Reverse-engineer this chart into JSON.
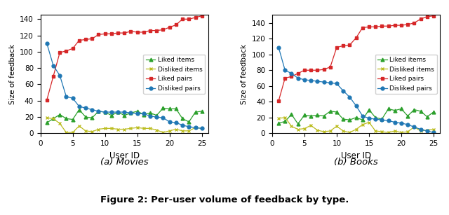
{
  "movies": {
    "x": [
      1,
      2,
      3,
      4,
      5,
      6,
      7,
      8,
      9,
      10,
      11,
      12,
      13,
      14,
      15,
      16,
      17,
      18,
      19,
      20,
      21,
      22,
      23,
      24,
      25
    ],
    "liked_items": [
      13,
      18,
      23,
      18,
      17,
      29,
      20,
      19,
      27,
      26,
      22,
      26,
      22,
      25,
      27,
      23,
      25,
      22,
      31,
      30,
      30,
      18,
      14,
      26,
      27
    ],
    "disliked_items": [
      19,
      18,
      12,
      1,
      1,
      9,
      3,
      2,
      5,
      6,
      6,
      5,
      5,
      6,
      7,
      6,
      6,
      4,
      1,
      3,
      5,
      3,
      3,
      7,
      6
    ],
    "liked_pairs": [
      41,
      70,
      99,
      101,
      104,
      114,
      115,
      116,
      121,
      122,
      122,
      123,
      123,
      125,
      124,
      124,
      126,
      126,
      127,
      130,
      133,
      140,
      140,
      142,
      144
    ],
    "disliked_pairs": [
      110,
      83,
      71,
      45,
      43,
      33,
      31,
      29,
      27,
      26,
      26,
      26,
      26,
      25,
      24,
      24,
      21,
      20,
      19,
      14,
      13,
      10,
      8,
      7,
      6
    ]
  },
  "books": {
    "x": [
      1,
      2,
      3,
      4,
      5,
      6,
      7,
      8,
      9,
      10,
      11,
      12,
      13,
      14,
      15,
      16,
      17,
      18,
      19,
      20,
      21,
      22,
      23,
      24,
      25
    ],
    "liked_items": [
      13,
      15,
      24,
      12,
      23,
      22,
      23,
      22,
      28,
      27,
      18,
      17,
      20,
      17,
      30,
      20,
      18,
      31,
      29,
      31,
      22,
      30,
      28,
      21,
      27
    ],
    "disliked_items": [
      19,
      20,
      9,
      5,
      6,
      10,
      4,
      2,
      3,
      9,
      3,
      1,
      5,
      11,
      14,
      3,
      2,
      1,
      3,
      1,
      2,
      8,
      3,
      4,
      5
    ],
    "liked_pairs": [
      41,
      70,
      72,
      76,
      80,
      80,
      80,
      81,
      84,
      109,
      111,
      112,
      121,
      134,
      135,
      135,
      136,
      136,
      137,
      137,
      138,
      140,
      145,
      148,
      149
    ],
    "disliked_pairs": [
      109,
      80,
      76,
      70,
      68,
      67,
      66,
      65,
      64,
      63,
      54,
      46,
      35,
      22,
      19,
      18,
      17,
      16,
      14,
      13,
      11,
      8,
      5,
      3,
      1
    ]
  },
  "colors": {
    "liked_items": "#2ca02c",
    "disliked_items": "#bcbd22",
    "liked_pairs": "#d62728",
    "disliked_pairs": "#1f77b4"
  },
  "ylabel": "Size of feedback",
  "xlabel": "User ID",
  "title_movies": "(a) Movies",
  "title_books": "(b) Books",
  "figure_caption": "Figure 2: Per-user volume of feedback by type.",
  "ylim_movies": [
    0,
    145
  ],
  "ylim_books": [
    0,
    150
  ],
  "yticks_movies": [
    0,
    20,
    40,
    60,
    80,
    100,
    120,
    140
  ],
  "yticks_books": [
    0,
    20,
    40,
    60,
    80,
    100,
    120,
    140
  ],
  "xticks": [
    0,
    5,
    10,
    15,
    20,
    25
  ]
}
